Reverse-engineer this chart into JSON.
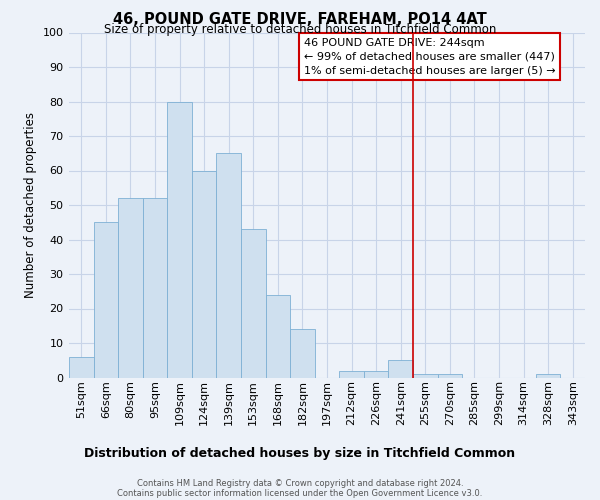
{
  "title": "46, POUND GATE DRIVE, FAREHAM, PO14 4AT",
  "subtitle": "Size of property relative to detached houses in Titchfield Common",
  "xlabel": "Distribution of detached houses by size in Titchfield Common",
  "ylabel": "Number of detached properties",
  "bin_labels": [
    "51sqm",
    "66sqm",
    "80sqm",
    "95sqm",
    "109sqm",
    "124sqm",
    "139sqm",
    "153sqm",
    "168sqm",
    "182sqm",
    "197sqm",
    "212sqm",
    "226sqm",
    "241sqm",
    "255sqm",
    "270sqm",
    "285sqm",
    "299sqm",
    "314sqm",
    "328sqm",
    "343sqm"
  ],
  "bar_values": [
    6,
    45,
    52,
    52,
    80,
    60,
    65,
    43,
    24,
    14,
    0,
    2,
    2,
    5,
    1,
    1,
    0,
    0,
    0,
    1,
    0
  ],
  "bar_color": "#cfe0ef",
  "bar_edge_color": "#7eb0d4",
  "ylim": [
    0,
    100
  ],
  "yticks": [
    0,
    10,
    20,
    30,
    40,
    50,
    60,
    70,
    80,
    90,
    100
  ],
  "vline_x_index": 13.5,
  "vline_color": "#cc0000",
  "annotation_title": "46 POUND GATE DRIVE: 244sqm",
  "annotation_line1": "← 99% of detached houses are smaller (447)",
  "annotation_line2": "1% of semi-detached houses are larger (5) →",
  "annotation_box_color": "#ffffff",
  "annotation_box_edge": "#cc0000",
  "footer1": "Contains HM Land Registry data © Crown copyright and database right 2024.",
  "footer2": "Contains public sector information licensed under the Open Government Licence v3.0.",
  "background_color": "#edf2f9",
  "grid_color": "#c8d4e8",
  "title_fontsize": 10.5,
  "subtitle_fontsize": 8.5,
  "ylabel_fontsize": 8.5,
  "xlabel_fontsize": 9,
  "tick_fontsize": 8,
  "annotation_fontsize": 8,
  "footer_fontsize": 6
}
